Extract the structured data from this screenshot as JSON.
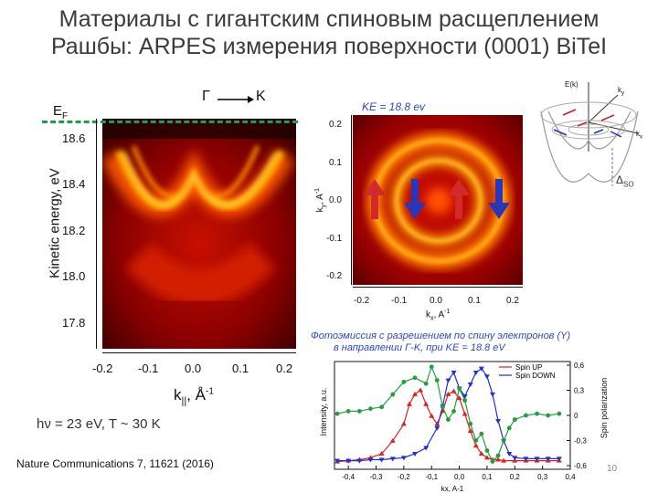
{
  "slide": {
    "title_line1": "Материалы с гигантским спиновым расщеплением",
    "title_line2": "Рашбы: ARPES измерения поверхности (0001) BiTeI",
    "page_number": "10",
    "citation": "Nature Communications 7, 11621 (2016)"
  },
  "arpes": {
    "fermi_label": "E",
    "fermi_sub": "F",
    "direction_from": "Γ",
    "direction_to": "K",
    "ylabel": "Kinetic energy, eV",
    "yticks": [
      "18.6",
      "18.4",
      "18.2",
      "18.0",
      "17.8"
    ],
    "xticks": [
      "-0.2",
      "-0.1",
      "0.0",
      "0.1",
      "0.2"
    ],
    "xlabel_main": "k",
    "xlabel_sub": "||",
    "xlabel_unit": ", Å",
    "xlabel_exp": "-1",
    "conditions": "hν = 23 eV, T ~ 30 K"
  },
  "cec": {
    "title": "KE = 18.8 ev",
    "ylabel_main": "k",
    "ylabel_sub": "y",
    "ylabel_unit": ", A",
    "ylabel_exp": "-1",
    "yticks": [
      "0.2",
      "0.1",
      "0.0",
      "-0.1",
      "-0.2"
    ],
    "xticks": [
      "-0.2",
      "-0.1",
      "0.0",
      "0.1",
      "0.2"
    ],
    "xlabel_main": "k",
    "xlabel_sub": "x",
    "xlabel_unit": ", A",
    "xlabel_exp": "-1"
  },
  "schematic": {
    "energy_label": "E(k)",
    "ky_label": "k",
    "ky_sub": "y",
    "kx_label": "k",
    "kx_sub": "x",
    "delta_label": "Δ",
    "delta_sub": "SO"
  },
  "spin_caption": {
    "line1": "Фотоэмиссия с разрешением по спину электронов (Y)",
    "line2": "в направлении Г-K, при KE = 18.8 eV"
  },
  "chart_data": {
    "type": "line",
    "xlabel": "kx, A-1",
    "ylabel": "Intensity, a.u.",
    "y2label": "Spin polarization",
    "xlim": [
      -0.45,
      0.4
    ],
    "y2lim": [
      -0.6,
      0.6
    ],
    "xticks": [
      "-0,4",
      "-0,3",
      "-0,2",
      "-0,1",
      "0,0",
      "0,1",
      "0,2",
      "0,3",
      "0,4"
    ],
    "y2ticks": [
      "0,6",
      "0,3",
      "0",
      "-0,3",
      "-0,6"
    ],
    "legend": {
      "position": "top-right",
      "entries": [
        "Spin UP",
        "Spin DOWN"
      ]
    },
    "series": [
      {
        "name": "Spin UP",
        "color": "#e02020",
        "x": [
          -0.44,
          -0.4,
          -0.36,
          -0.32,
          -0.28,
          -0.24,
          -0.2,
          -0.18,
          -0.16,
          -0.14,
          -0.12,
          -0.1,
          -0.08,
          -0.06,
          -0.04,
          -0.02,
          0.0,
          0.02,
          0.04,
          0.06,
          0.08,
          0.1,
          0.12,
          0.14,
          0.16,
          0.2,
          0.24,
          0.28,
          0.32,
          0.36
        ],
        "values": [
          0.04,
          0.05,
          0.06,
          0.08,
          0.12,
          0.25,
          0.42,
          0.62,
          0.72,
          0.76,
          0.62,
          0.5,
          0.42,
          0.55,
          0.72,
          0.75,
          0.68,
          0.52,
          0.35,
          0.2,
          0.12,
          0.08,
          0.06,
          0.06,
          0.05,
          0.05,
          0.05,
          0.05,
          0.05,
          0.05
        ]
      },
      {
        "name": "Spin DOWN",
        "color": "#2030d0",
        "x": [
          -0.44,
          -0.4,
          -0.36,
          -0.32,
          -0.28,
          -0.24,
          -0.2,
          -0.16,
          -0.12,
          -0.08,
          -0.06,
          -0.04,
          -0.02,
          0.0,
          0.02,
          0.04,
          0.06,
          0.08,
          0.1,
          0.12,
          0.14,
          0.16,
          0.18,
          0.2,
          0.24,
          0.28,
          0.32,
          0.36
        ],
        "values": [
          0.05,
          0.05,
          0.05,
          0.06,
          0.06,
          0.07,
          0.08,
          0.12,
          0.18,
          0.38,
          0.6,
          0.86,
          0.94,
          0.78,
          0.7,
          0.82,
          0.94,
          0.98,
          0.9,
          0.72,
          0.45,
          0.25,
          0.12,
          0.08,
          0.07,
          0.07,
          0.07,
          0.07
        ]
      },
      {
        "name": "Spin polarization",
        "axis": "right",
        "color": "#22a040",
        "x": [
          -0.44,
          -0.4,
          -0.36,
          -0.32,
          -0.28,
          -0.24,
          -0.2,
          -0.16,
          -0.12,
          -0.1,
          -0.08,
          -0.06,
          -0.04,
          -0.02,
          0.0,
          0.02,
          0.04,
          0.06,
          0.08,
          0.1,
          0.12,
          0.14,
          0.16,
          0.18,
          0.2,
          0.24,
          0.28,
          0.32,
          0.36
        ],
        "values": [
          0.02,
          0.05,
          0.05,
          0.08,
          0.1,
          0.25,
          0.4,
          0.45,
          0.38,
          0.58,
          0.42,
          0.1,
          -0.05,
          0.05,
          0.32,
          0.18,
          -0.1,
          -0.3,
          -0.22,
          -0.42,
          -0.55,
          -0.48,
          -0.3,
          -0.15,
          -0.05,
          0.0,
          0.02,
          0.0,
          0.02
        ]
      }
    ]
  }
}
